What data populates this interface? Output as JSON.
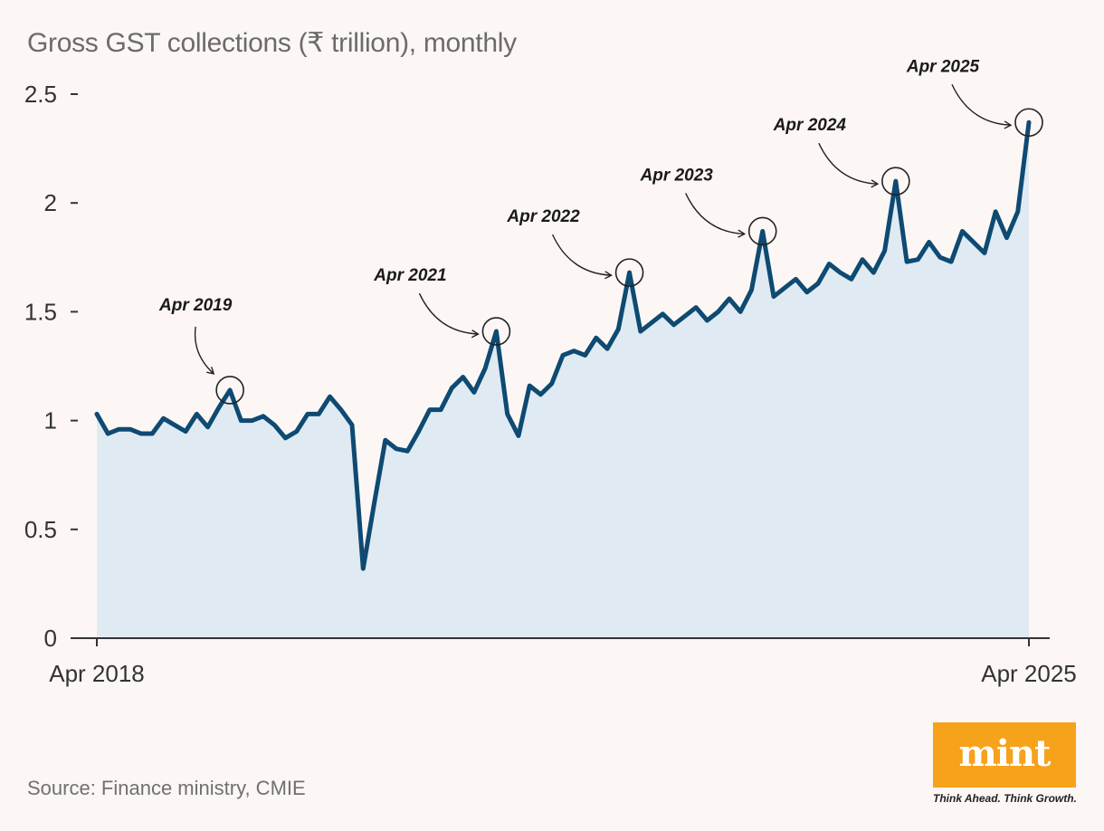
{
  "title": "Gross GST collections (₹ trillion), monthly",
  "source": "Source: Finance ministry, CMIE",
  "brand": {
    "logo_text": "mint",
    "tagline": "Think Ahead. Think Growth.",
    "logo_color": "#f7a21b"
  },
  "colors": {
    "line": "#0e4a72",
    "area": "#dfeaf3",
    "axis": "#333333"
  },
  "chart_data": {
    "type": "area",
    "title": "Gross GST collections (₹ trillion), monthly",
    "xlabel": "",
    "ylabel": "",
    "ylim": [
      0,
      2.5
    ],
    "yticks": [
      0,
      0.5,
      1,
      1.5,
      2,
      2.5
    ],
    "ytick_labels": [
      "0",
      "0.5",
      "1",
      "1.5",
      "2",
      "2.5"
    ],
    "xtick_labels": [
      "Apr 2018",
      "Apr 2025"
    ],
    "start": "Apr 2018",
    "end": "Apr 2025",
    "grid": false,
    "values": [
      1.03,
      0.94,
      0.96,
      0.96,
      0.94,
      0.94,
      1.01,
      0.98,
      0.95,
      1.03,
      0.97,
      1.06,
      1.14,
      1.0,
      1.0,
      1.02,
      0.98,
      0.92,
      0.95,
      1.03,
      1.03,
      1.11,
      1.05,
      0.98,
      0.32,
      0.62,
      0.91,
      0.87,
      0.86,
      0.95,
      1.05,
      1.05,
      1.15,
      1.2,
      1.13,
      1.24,
      1.41,
      1.03,
      0.93,
      1.16,
      1.12,
      1.17,
      1.3,
      1.32,
      1.3,
      1.38,
      1.33,
      1.42,
      1.68,
      1.41,
      1.45,
      1.49,
      1.44,
      1.48,
      1.52,
      1.46,
      1.5,
      1.56,
      1.5,
      1.6,
      1.87,
      1.57,
      1.61,
      1.65,
      1.59,
      1.63,
      1.72,
      1.68,
      1.65,
      1.74,
      1.68,
      1.78,
      2.1,
      1.73,
      1.74,
      1.82,
      1.75,
      1.73,
      1.87,
      1.82,
      1.77,
      1.96,
      1.84,
      1.96,
      2.37
    ],
    "annotations": [
      {
        "label": "Apr 2019",
        "index": 12
      },
      {
        "label": "Apr 2021",
        "index": 36
      },
      {
        "label": "Apr 2022",
        "index": 48
      },
      {
        "label": "Apr 2023",
        "index": 60
      },
      {
        "label": "Apr 2024",
        "index": 72
      },
      {
        "label": "Apr 2025",
        "index": 84
      }
    ]
  }
}
